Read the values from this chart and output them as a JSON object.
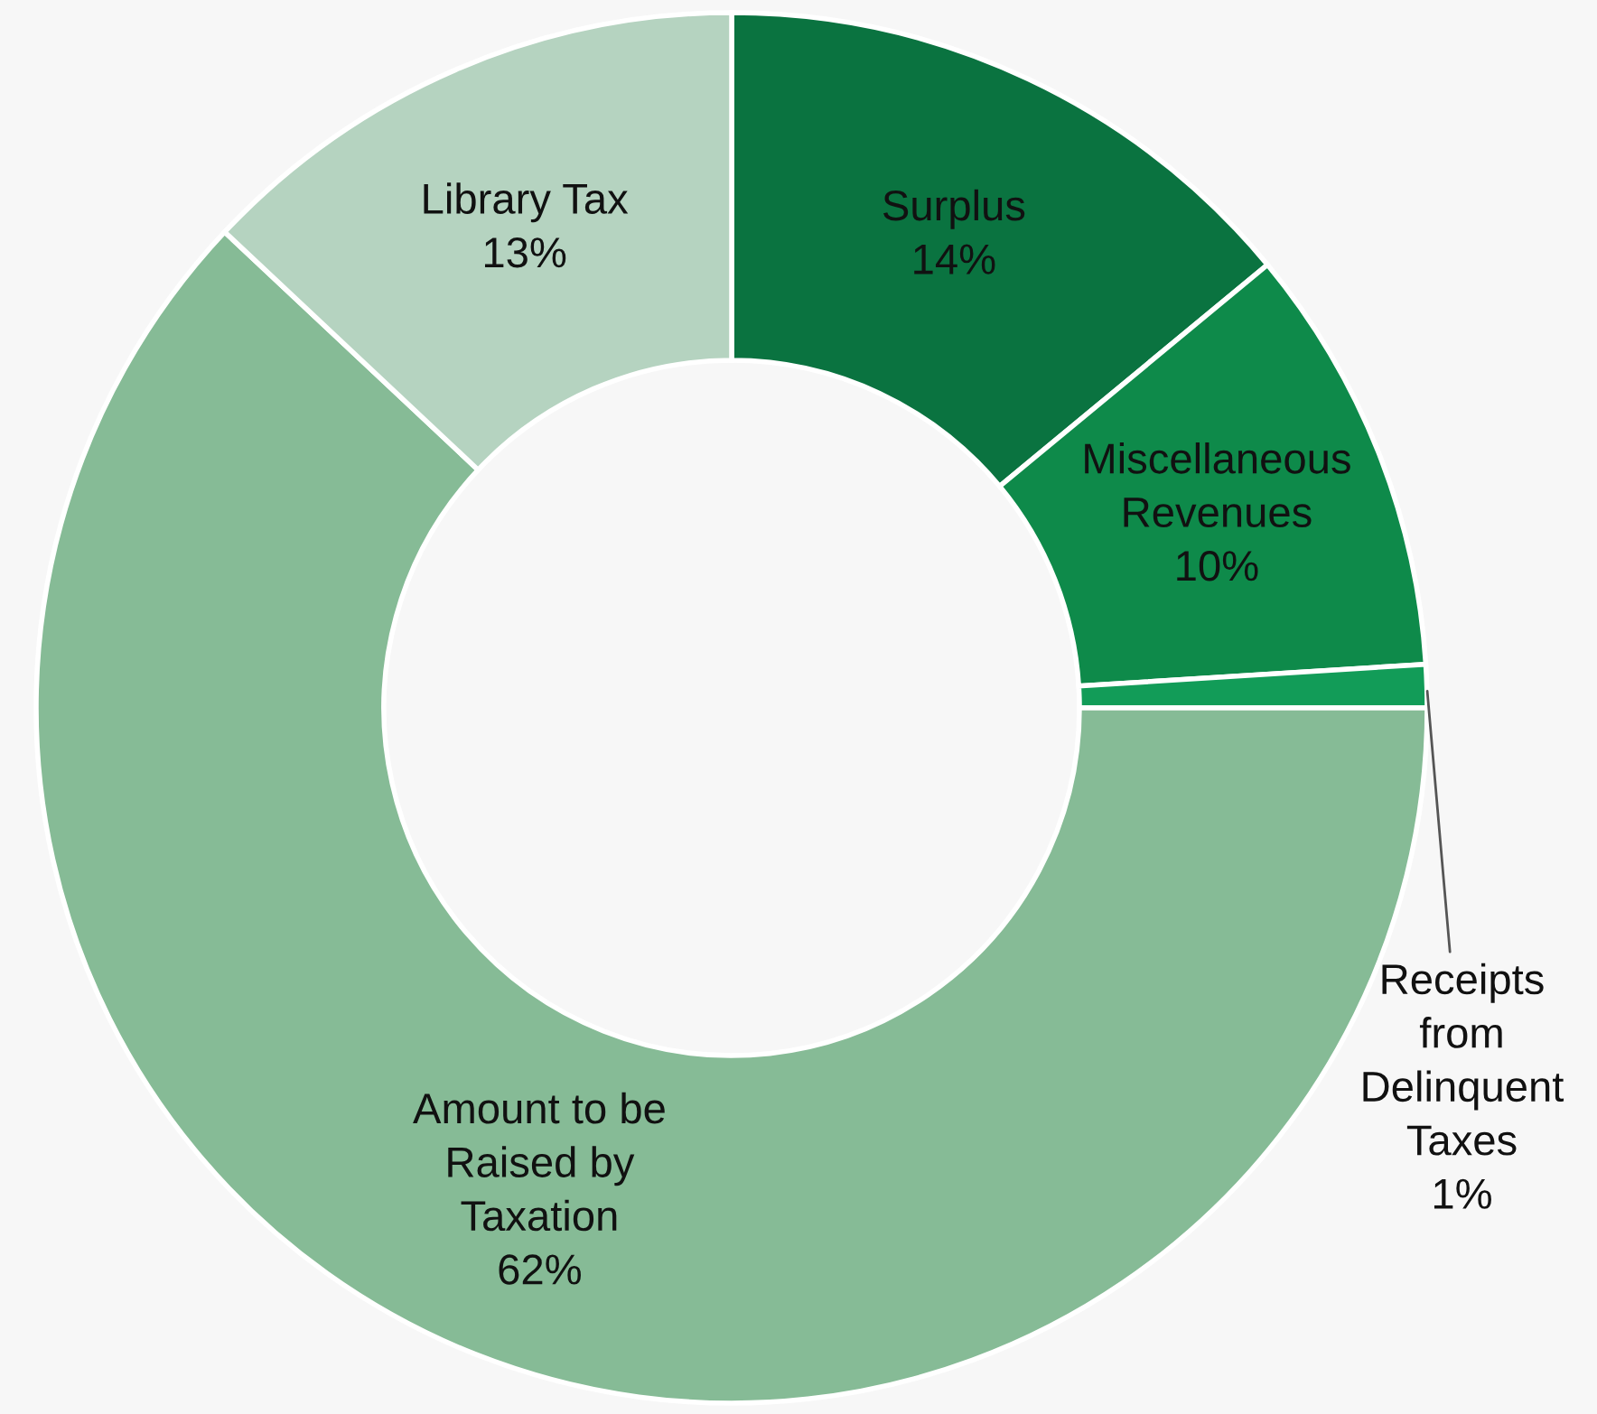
{
  "chart_data": {
    "type": "donut",
    "categories": [
      "Surplus",
      "Miscellaneous\nRevenues",
      "Receipts\nfrom\nDelinquent\nTaxes",
      "Amount to be\nRaised by\nTaxation",
      "Library Tax"
    ],
    "values": [
      14,
      10,
      1,
      62,
      13
    ],
    "colors": [
      "#0a7340",
      "#0e8a4a",
      "#129c58",
      "#86bb96",
      "#b5d3c0"
    ],
    "value_labels": [
      "14%",
      "10%",
      "1%",
      "62%",
      "13%"
    ],
    "legend": false
  }
}
